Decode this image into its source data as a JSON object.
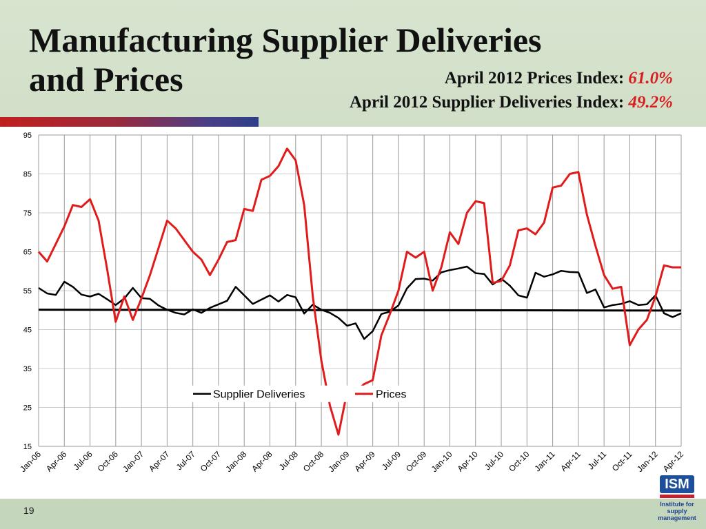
{
  "slide": {
    "title_line1": "Manufacturing Supplier Deliveries",
    "title_line2": "and Prices",
    "prices_label": "April 2012 Prices Index:",
    "prices_value": "61.0%",
    "deliveries_label": "April 2012 Supplier Deliveries Index:",
    "deliveries_value": "49.2%",
    "page_number": "19"
  },
  "logo": {
    "mark": "ISM",
    "line1": "Institute for",
    "line2": "supply management"
  },
  "colors": {
    "prices": "#e01b1b",
    "deliveries": "#000000",
    "reference": "#000000",
    "grid": "#9a9a9a"
  },
  "chart_data": {
    "type": "line",
    "ylim": [
      15,
      95
    ],
    "yticks": [
      15,
      25,
      35,
      45,
      55,
      65,
      75,
      85,
      95
    ],
    "xtick_labels": [
      "Jan-06",
      "Apr-06",
      "Jul-06",
      "Oct-06",
      "Jan-07",
      "Apr-07",
      "Jul-07",
      "Oct-07",
      "Jan-08",
      "Apr-08",
      "Jul-08",
      "Oct-08",
      "Jan-09",
      "Apr-09",
      "Jul-09",
      "Oct-09",
      "Jan-10",
      "Apr-10",
      "Jul-10",
      "Oct-10",
      "Jan-11",
      "Apr-11",
      "Jul-11",
      "Oct-11",
      "Jan-12",
      "Apr-12"
    ],
    "grid": true,
    "legend_position": "lower-center",
    "reference_line": 50,
    "series": [
      {
        "name": "Supplier Deliveries",
        "values": [
          55.7,
          54.3,
          53.9,
          57.3,
          56.0,
          54.0,
          53.5,
          54.2,
          52.8,
          51.3,
          53.0,
          55.7,
          53.1,
          52.9,
          51.2,
          50.1,
          49.3,
          48.9,
          50.2,
          49.3,
          50.6,
          51.5,
          52.4,
          56.0,
          53.8,
          51.6,
          52.7,
          53.8,
          52.2,
          53.9,
          53.3,
          49.1,
          51.4,
          50.1,
          49.3,
          48.0,
          46.0,
          46.6,
          42.6,
          44.6,
          49.0,
          49.6,
          51.2,
          55.6,
          58.0,
          58.1,
          57.6,
          59.7,
          60.3,
          60.7,
          61.2,
          59.5,
          59.3,
          56.6,
          58.1,
          56.3,
          53.8,
          53.2,
          59.6,
          58.6,
          59.2,
          60.1,
          59.8,
          59.7,
          54.4,
          55.3,
          50.7,
          51.3,
          51.6,
          52.3,
          51.3,
          51.5,
          53.8,
          49.2,
          48.2,
          49.2
        ]
      },
      {
        "name": "Prices",
        "values": [
          65.0,
          62.5,
          67.0,
          71.5,
          77.0,
          76.5,
          78.5,
          73.0,
          60.5,
          47.0,
          53.5,
          47.5,
          53.0,
          59.0,
          66.0,
          73.0,
          71.0,
          68.0,
          65.0,
          63.0,
          59.0,
          63.0,
          67.5,
          68.0,
          76.0,
          75.5,
          83.5,
          84.5,
          87.0,
          91.5,
          88.5,
          77.0,
          53.5,
          37.0,
          25.5,
          18.0,
          29.0,
          29.0,
          31.0,
          32.0,
          43.5,
          49.0,
          55.0,
          65.0,
          63.5,
          65.0,
          55.0,
          61.0,
          70.0,
          67.0,
          75.0,
          78.0,
          77.5,
          57.0,
          57.5,
          61.5,
          70.5,
          71.0,
          69.5,
          72.5,
          81.5,
          82.0,
          85.0,
          85.5,
          74.5,
          66.5,
          59.0,
          55.5,
          56.0,
          41.0,
          45.0,
          47.5,
          53.5,
          61.5,
          61.0,
          61.0
        ]
      }
    ]
  }
}
